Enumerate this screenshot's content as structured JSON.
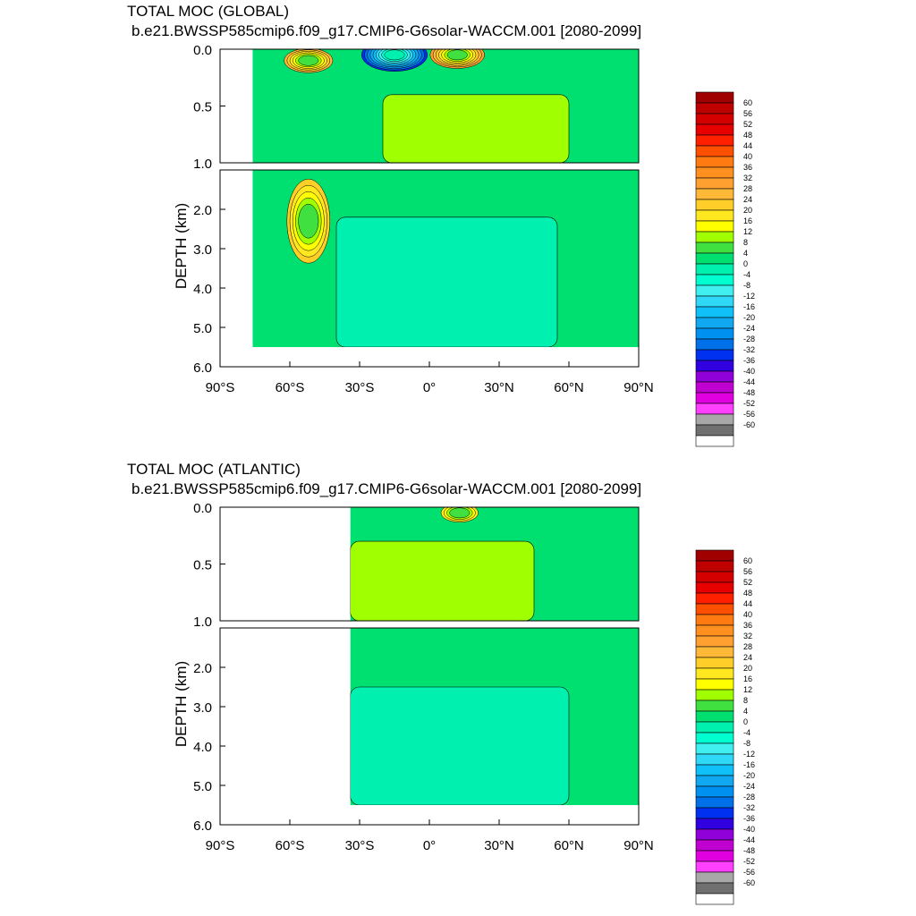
{
  "chart_data": [
    {
      "type": "heatmap",
      "title": "TOTAL MOC (GLOBAL)",
      "subtitle": "b.e21.BWSSP585cmip6.f09_g17.CMIP6-G6solar-WACCM.001 [2080-2099]",
      "xlabel": "",
      "ylabel": "DEPTH (km)",
      "xlim": [
        -90,
        90
      ],
      "ylim": [
        6.0,
        0.0
      ],
      "x_ticks": [
        "90°S",
        "60°S",
        "30°S",
        "0°",
        "30°N",
        "60°N",
        "90°N"
      ],
      "x_tick_values": [
        -90,
        -60,
        -30,
        0,
        30,
        60,
        90
      ],
      "y_ticks_upper": [
        "0.0",
        "0.5",
        "1.0"
      ],
      "y_ticks_lower": [
        "2.0",
        "3.0",
        "4.0",
        "5.0",
        "6.0"
      ],
      "upper_panel_depth_km": [
        0.0,
        1.0
      ],
      "lower_panel_depth_km": [
        1.0,
        6.0
      ],
      "ocean_extent": {
        "lat_min": -76,
        "lat_max": 90,
        "max_depth_km": 5.5
      },
      "features": [
        {
          "kind": "cell",
          "lat": -52,
          "depth_km": 0.1,
          "value": 24
        },
        {
          "kind": "cell",
          "lat": -52,
          "depth_km": 2.3,
          "value": 20
        },
        {
          "kind": "cell",
          "lat": -15,
          "depth_km": 0.05,
          "value": -36
        },
        {
          "kind": "cell",
          "lat": 12,
          "depth_km": 0.05,
          "value": 28
        },
        {
          "kind": "band",
          "lat_range": [
            -20,
            60
          ],
          "depth_km": [
            0.4,
            1.0
          ],
          "value": 10
        },
        {
          "kind": "band",
          "lat_range": [
            -40,
            55
          ],
          "depth_km": [
            2.2,
            5.5
          ],
          "value": -2
        }
      ]
    },
    {
      "type": "heatmap",
      "title": "TOTAL MOC (ATLANTIC)",
      "subtitle": "b.e21.BWSSP585cmip6.f09_g17.CMIP6-G6solar-WACCM.001 [2080-2099]",
      "xlabel": "",
      "ylabel": "DEPTH (km)",
      "xlim": [
        -90,
        90
      ],
      "ylim": [
        6.0,
        0.0
      ],
      "x_ticks": [
        "90°S",
        "60°S",
        "30°S",
        "0°",
        "30°N",
        "60°N",
        "90°N"
      ],
      "x_tick_values": [
        -90,
        -60,
        -30,
        0,
        30,
        60,
        90
      ],
      "y_ticks_upper": [
        "0.0",
        "0.5",
        "1.0"
      ],
      "y_ticks_lower": [
        "2.0",
        "3.0",
        "4.0",
        "5.0",
        "6.0"
      ],
      "upper_panel_depth_km": [
        0.0,
        1.0
      ],
      "lower_panel_depth_km": [
        1.0,
        6.0
      ],
      "ocean_extent": {
        "lat_min": -34,
        "lat_max": 90,
        "max_depth_km": 5.5
      },
      "features": [
        {
          "kind": "band",
          "lat_range": [
            -34,
            45
          ],
          "depth_km": [
            0.3,
            1.0
          ],
          "value": 10
        },
        {
          "kind": "cell",
          "lat": 13,
          "depth_km": 0.05,
          "value": 14
        },
        {
          "kind": "band",
          "lat_range": [
            -34,
            60
          ],
          "depth_km": [
            2.5,
            5.5
          ],
          "value": -2
        }
      ]
    }
  ],
  "colorbar": {
    "labels": [
      "60",
      "56",
      "52",
      "48",
      "44",
      "40",
      "36",
      "32",
      "28",
      "24",
      "20",
      "16",
      "12",
      "8",
      "4",
      "0",
      "-4",
      "-8",
      "-12",
      "-16",
      "-20",
      "-24",
      "-28",
      "-32",
      "-36",
      "-40",
      "-44",
      "-48",
      "-52",
      "-56",
      "-60"
    ],
    "colors": [
      "#a00000",
      "#be0000",
      "#d40000",
      "#e80000",
      "#ff2000",
      "#ff5000",
      "#ff7a10",
      "#ff9020",
      "#ffa030",
      "#ffb838",
      "#ffce28",
      "#ffe820",
      "#ffff00",
      "#a0ff00",
      "#40e040",
      "#00e070",
      "#00f0b0",
      "#00ffd0",
      "#40f0f0",
      "#30d8f8",
      "#10c0f8",
      "#10a8f0",
      "#0090f0",
      "#0070e8",
      "#0030f0",
      "#3000e0",
      "#9000d8",
      "#c000d0",
      "#e000e0",
      "#ff40ff",
      "#a8a8a8",
      "#707070",
      "#ffffff"
    ]
  }
}
